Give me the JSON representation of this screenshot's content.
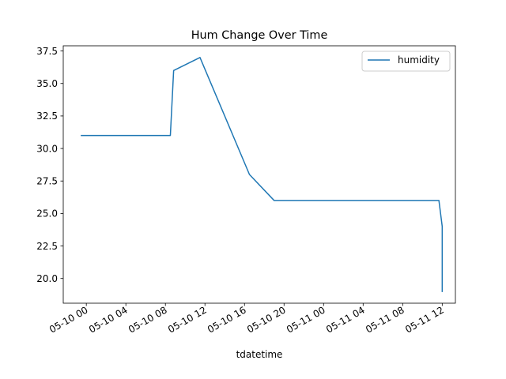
{
  "chart_data": {
    "type": "line",
    "title": "Hum Change Over Time",
    "xlabel": "tdatetime",
    "ylabel": "",
    "x_ticks": [
      "05-10 00",
      "05-10 04",
      "05-10 08",
      "05-10 12",
      "05-10 16",
      "05-10 20",
      "05-11 00",
      "05-11 04",
      "05-11 08",
      "05-11 12"
    ],
    "x_tick_values": [
      "2023-05-10T00:00",
      "2023-05-10T04:00",
      "2023-05-10T08:00",
      "2023-05-10T12:00",
      "2023-05-10T16:00",
      "2023-05-10T20:00",
      "2023-05-11T00:00",
      "2023-05-11T04:00",
      "2023-05-11T08:00",
      "2023-05-11T12:00"
    ],
    "y_ticks": [
      "20.0",
      "22.5",
      "25.0",
      "27.5",
      "30.0",
      "32.5",
      "35.0",
      "37.5"
    ],
    "y_tick_values": [
      20,
      22.5,
      25,
      27.5,
      30,
      32.5,
      35,
      37.5
    ],
    "xlim": [
      "2023-05-09T21:40",
      "2023-05-11T13:20"
    ],
    "ylim": [
      18.1,
      37.9
    ],
    "grid": false,
    "legend_position": "upper right",
    "series": [
      {
        "name": "humidity",
        "color": "#1f77b4",
        "x": [
          "2023-05-09T23:30",
          "2023-05-10T08:30",
          "2023-05-10T08:50",
          "2023-05-10T11:30",
          "2023-05-10T16:30",
          "2023-05-10T19:00",
          "2023-05-11T11:40",
          "2023-05-11T12:00",
          "2023-05-11T12:00"
        ],
        "y": [
          31,
          31,
          36,
          37,
          28,
          26,
          26,
          24,
          19
        ]
      }
    ]
  }
}
